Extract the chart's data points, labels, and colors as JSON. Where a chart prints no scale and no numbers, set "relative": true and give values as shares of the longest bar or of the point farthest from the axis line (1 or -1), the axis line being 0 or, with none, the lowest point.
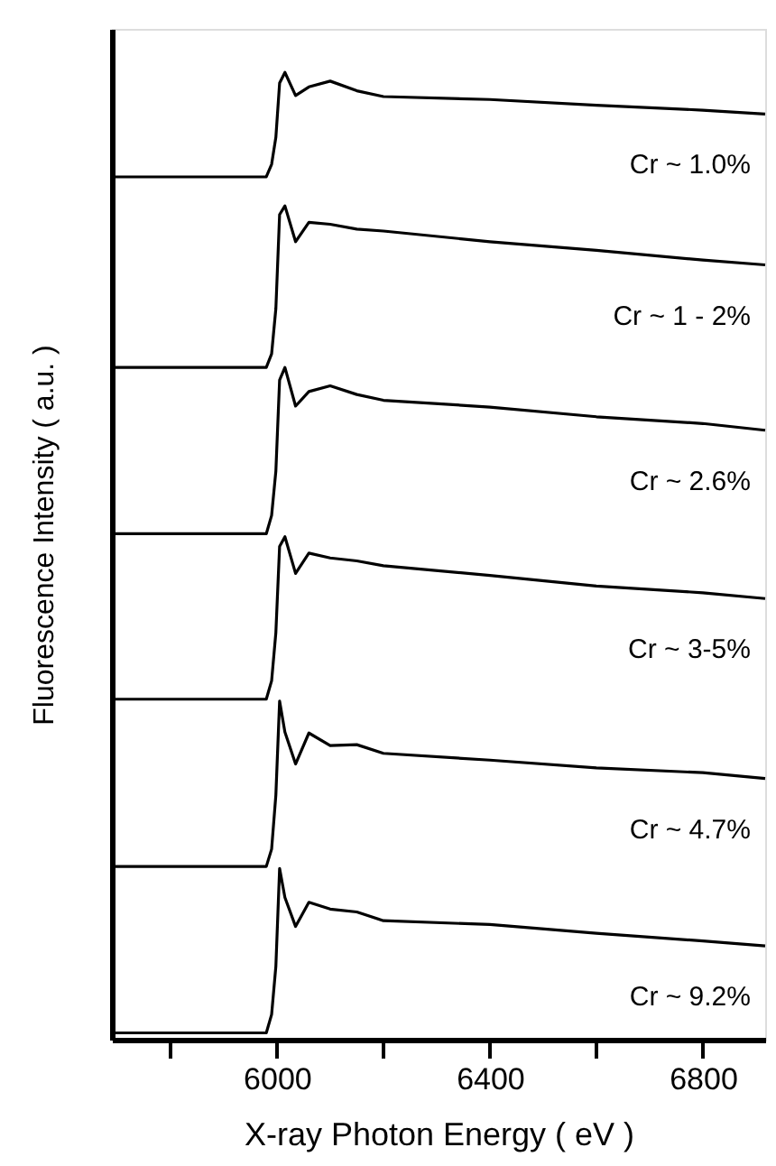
{
  "chart_data": {
    "type": "line",
    "relative": true,
    "xlabel": "X-ray Photon Energy ( eV )",
    "ylabel": "Fluorescence Intensity ( a.u. )",
    "xlim": [
      5690,
      6917
    ],
    "xticks": [
      {
        "value": 5800,
        "label": null
      },
      6000,
      {
        "value": 6200,
        "label": null
      },
      6400,
      {
        "value": 6600,
        "label": null
      },
      6800
    ],
    "tick_labels": "x",
    "grid": false,
    "line_style": "solid",
    "marker": "none",
    "x": [
      5690,
      5980,
      5990,
      5998,
      6005,
      6015,
      6035,
      6060,
      6100,
      6150,
      6200,
      6400,
      6600,
      6800,
      6917
    ],
    "series": [
      {
        "color": "#000000",
        "values": [
          0.892,
          0.892,
          0.905,
          0.933,
          0.989,
          1.0,
          0.976,
          0.985,
          0.991,
          0.981,
          0.975,
          0.972,
          0.966,
          0.961,
          0.957
        ]
      },
      {
        "color": "#000000",
        "values": [
          0.695,
          0.695,
          0.709,
          0.756,
          0.853,
          0.862,
          0.825,
          0.845,
          0.843,
          0.838,
          0.836,
          0.825,
          0.816,
          0.806,
          0.801
        ]
      },
      {
        "color": "#000000",
        "values": [
          0.523,
          0.523,
          0.542,
          0.588,
          0.682,
          0.695,
          0.655,
          0.67,
          0.676,
          0.667,
          0.661,
          0.654,
          0.644,
          0.637,
          0.63
        ]
      },
      {
        "color": "#000000",
        "values": [
          0.352,
          0.352,
          0.371,
          0.421,
          0.51,
          0.52,
          0.482,
          0.503,
          0.498,
          0.495,
          0.49,
          0.48,
          0.469,
          0.462,
          0.456
        ]
      },
      {
        "color": "#000000",
        "values": [
          0.179,
          0.179,
          0.197,
          0.253,
          0.35,
          0.318,
          0.285,
          0.317,
          0.304,
          0.305,
          0.296,
          0.289,
          0.281,
          0.276,
          0.27
        ]
      },
      {
        "color": "#000000",
        "values": [
          0.007,
          0.007,
          0.026,
          0.076,
          0.177,
          0.147,
          0.117,
          0.142,
          0.135,
          0.132,
          0.123,
          0.119,
          0.11,
          0.102,
          0.097
        ]
      }
    ],
    "annotations": [
      "Cr ~ 1.0%",
      "Cr ~ 1 - 2%",
      "Cr ~ 2.6%",
      "Cr ~ 3-5%",
      "Cr ~ 4.7%",
      "Cr ~ 9.2%"
    ]
  }
}
